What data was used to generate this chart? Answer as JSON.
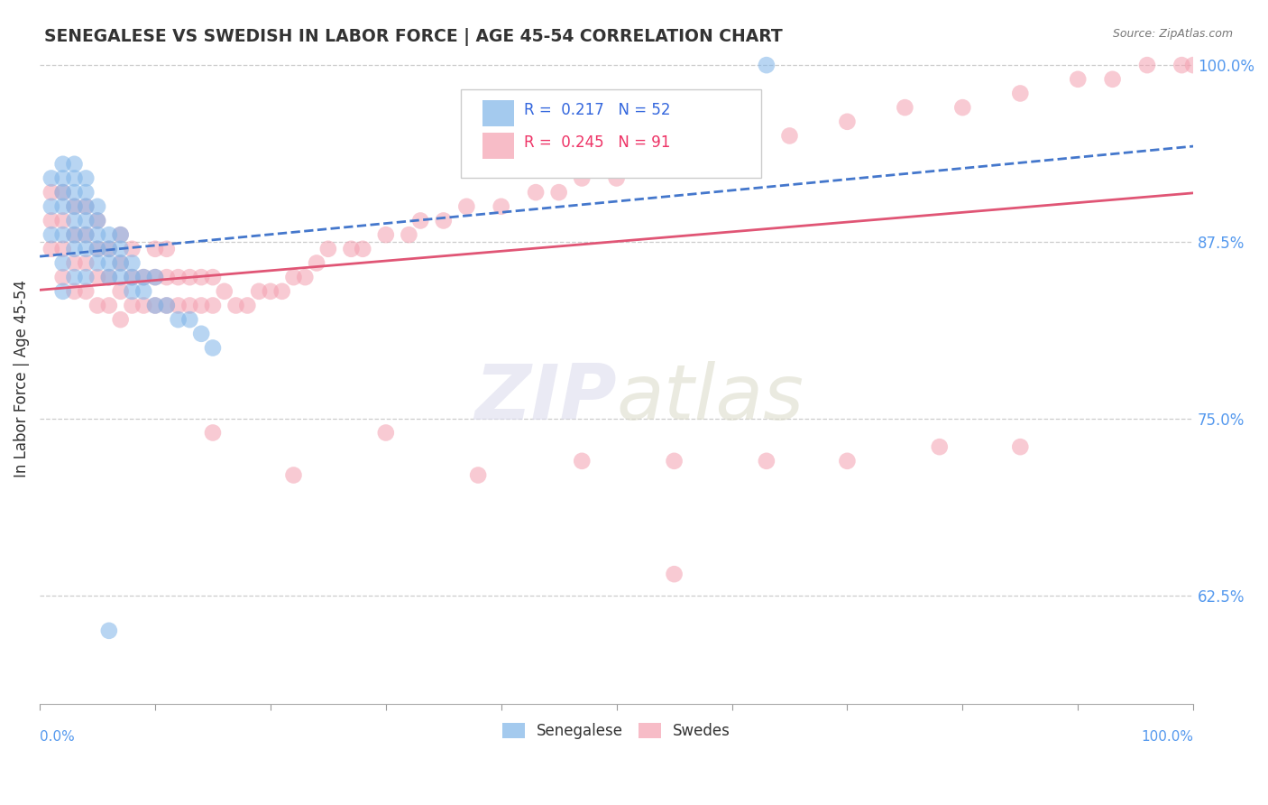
{
  "title": "SENEGALESE VS SWEDISH IN LABOR FORCE | AGE 45-54 CORRELATION CHART",
  "source": "Source: ZipAtlas.com",
  "ylabel": "In Labor Force | Age 45-54",
  "legend_blue_label": "Senegalese",
  "legend_pink_label": "Swedes",
  "R_blue": 0.217,
  "N_blue": 52,
  "R_pink": 0.245,
  "N_pink": 91,
  "blue_color": "#7EB4E8",
  "pink_color": "#F4A0B0",
  "blue_trend_color": "#4477CC",
  "pink_trend_color": "#E05575",
  "ylim": [
    0.548,
    1.008
  ],
  "xlim": [
    0.0,
    1.0
  ],
  "ytick_positions": [
    0.625,
    0.75,
    0.875,
    1.0
  ],
  "ytick_labels": [
    "62.5%",
    "75.0%",
    "87.5%",
    "100.0%"
  ],
  "blue_x": [
    0.01,
    0.01,
    0.01,
    0.02,
    0.02,
    0.02,
    0.02,
    0.02,
    0.02,
    0.02,
    0.03,
    0.03,
    0.03,
    0.03,
    0.03,
    0.03,
    0.03,
    0.03,
    0.04,
    0.04,
    0.04,
    0.04,
    0.04,
    0.04,
    0.04,
    0.05,
    0.05,
    0.05,
    0.05,
    0.05,
    0.06,
    0.06,
    0.06,
    0.06,
    0.07,
    0.07,
    0.07,
    0.07,
    0.08,
    0.08,
    0.08,
    0.09,
    0.09,
    0.1,
    0.1,
    0.11,
    0.12,
    0.13,
    0.14,
    0.15,
    0.06,
    0.63
  ],
  "blue_y": [
    0.88,
    0.9,
    0.92,
    0.84,
    0.86,
    0.88,
    0.9,
    0.91,
    0.92,
    0.93,
    0.85,
    0.87,
    0.88,
    0.89,
    0.9,
    0.91,
    0.92,
    0.93,
    0.85,
    0.87,
    0.88,
    0.89,
    0.9,
    0.91,
    0.92,
    0.86,
    0.87,
    0.88,
    0.89,
    0.9,
    0.85,
    0.86,
    0.87,
    0.88,
    0.85,
    0.86,
    0.87,
    0.88,
    0.84,
    0.85,
    0.86,
    0.84,
    0.85,
    0.83,
    0.85,
    0.83,
    0.82,
    0.82,
    0.81,
    0.8,
    0.6,
    1.0
  ],
  "pink_x": [
    0.01,
    0.01,
    0.01,
    0.02,
    0.02,
    0.02,
    0.02,
    0.03,
    0.03,
    0.03,
    0.03,
    0.04,
    0.04,
    0.04,
    0.04,
    0.05,
    0.05,
    0.05,
    0.05,
    0.06,
    0.06,
    0.06,
    0.07,
    0.07,
    0.07,
    0.07,
    0.08,
    0.08,
    0.08,
    0.09,
    0.09,
    0.1,
    0.1,
    0.1,
    0.11,
    0.11,
    0.11,
    0.12,
    0.12,
    0.13,
    0.13,
    0.14,
    0.14,
    0.15,
    0.15,
    0.16,
    0.17,
    0.18,
    0.19,
    0.2,
    0.21,
    0.22,
    0.23,
    0.24,
    0.25,
    0.27,
    0.28,
    0.3,
    0.32,
    0.33,
    0.35,
    0.37,
    0.4,
    0.43,
    0.45,
    0.47,
    0.5,
    0.55,
    0.58,
    0.6,
    0.65,
    0.7,
    0.75,
    0.8,
    0.85,
    0.9,
    0.93,
    0.96,
    0.99,
    1.0,
    0.15,
    0.22,
    0.3,
    0.38,
    0.47,
    0.55,
    0.63,
    0.7,
    0.78,
    0.85,
    0.55
  ],
  "pink_y": [
    0.87,
    0.89,
    0.91,
    0.85,
    0.87,
    0.89,
    0.91,
    0.84,
    0.86,
    0.88,
    0.9,
    0.84,
    0.86,
    0.88,
    0.9,
    0.83,
    0.85,
    0.87,
    0.89,
    0.83,
    0.85,
    0.87,
    0.82,
    0.84,
    0.86,
    0.88,
    0.83,
    0.85,
    0.87,
    0.83,
    0.85,
    0.83,
    0.85,
    0.87,
    0.83,
    0.85,
    0.87,
    0.83,
    0.85,
    0.83,
    0.85,
    0.83,
    0.85,
    0.83,
    0.85,
    0.84,
    0.83,
    0.83,
    0.84,
    0.84,
    0.84,
    0.85,
    0.85,
    0.86,
    0.87,
    0.87,
    0.87,
    0.88,
    0.88,
    0.89,
    0.89,
    0.9,
    0.9,
    0.91,
    0.91,
    0.92,
    0.92,
    0.93,
    0.94,
    0.94,
    0.95,
    0.96,
    0.97,
    0.97,
    0.98,
    0.99,
    0.99,
    1.0,
    1.0,
    1.0,
    0.74,
    0.71,
    0.74,
    0.71,
    0.72,
    0.72,
    0.72,
    0.72,
    0.73,
    0.73,
    0.64
  ]
}
